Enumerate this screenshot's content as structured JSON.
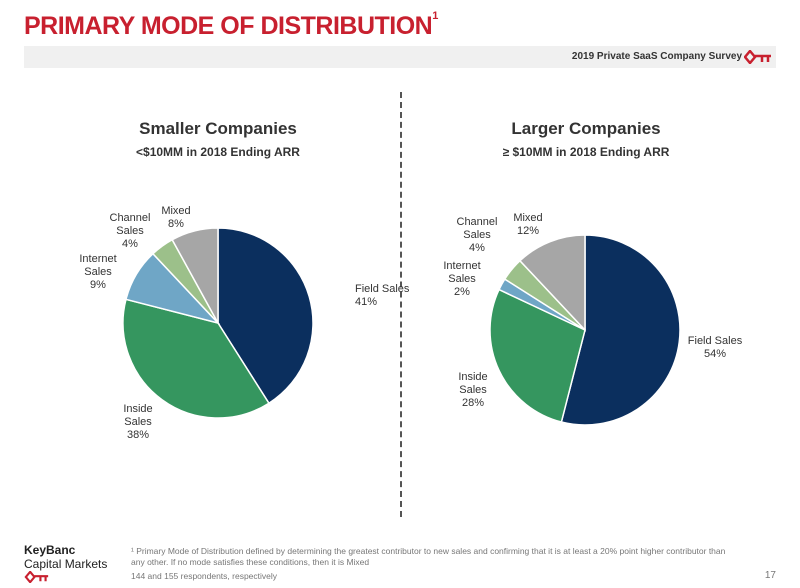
{
  "header": {
    "title": "PRIMARY MODE OF DISTRIBUTION",
    "title_footnote": "1",
    "survey": "2019 Private SaaS Company Survey"
  },
  "chart_data": [
    {
      "type": "pie",
      "title": "Smaller Companies",
      "subtitle": "<$10MM in 2018 Ending ARR",
      "slices": [
        {
          "label": "Field Sales",
          "value": 41,
          "text": "41%",
          "color": "#0b2f5e"
        },
        {
          "label": "Inside Sales",
          "value": 38,
          "text": "38%",
          "color": "#35965f"
        },
        {
          "label": "Internet Sales",
          "value": 9,
          "text": "9%",
          "color": "#6fa6c6"
        },
        {
          "label": "Channel Sales",
          "value": 4,
          "text": "4%",
          "color": "#9cc08a"
        },
        {
          "label": "Mixed",
          "value": 8,
          "text": "8%",
          "color": "#a6a6a6"
        }
      ]
    },
    {
      "type": "pie",
      "title": "Larger Companies",
      "subtitle": "≥ $10MM in 2018 Ending ARR",
      "slices": [
        {
          "label": "Field Sales",
          "value": 54,
          "text": "54%",
          "color": "#0b2f5e"
        },
        {
          "label": "Inside Sales",
          "value": 28,
          "text": "28%",
          "color": "#35965f"
        },
        {
          "label": "Internet Sales",
          "value": 2,
          "text": "2%",
          "color": "#6fa6c6"
        },
        {
          "label": "Channel Sales",
          "value": 4,
          "text": "4%",
          "color": "#9cc08a"
        },
        {
          "label": "Mixed",
          "value": 12,
          "text": "12%",
          "color": "#a6a6a6"
        }
      ]
    }
  ],
  "footer": {
    "brand_line1": "KeyBanc",
    "brand_line2": "Capital Markets",
    "footnote": "¹ Primary Mode of Distribution defined by determining the greatest contributor to new sales and confirming that it is at least a 20% point higher contributor than any other.  If no mode satisfies these conditions, then it is Mixed",
    "respondents": "144 and 155 respondents, respectively",
    "page": "17"
  },
  "colors": {
    "accent": "#c8202f"
  }
}
